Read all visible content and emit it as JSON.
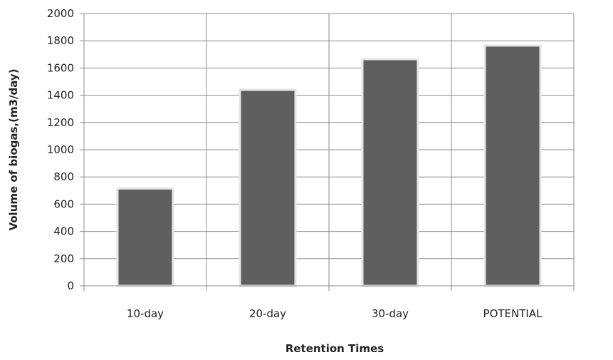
{
  "chart_data": {
    "type": "bar",
    "title": "",
    "xlabel": "Retention Times",
    "ylabel": "Volume of biogas,(m3/day)",
    "categories": [
      "10-day",
      "20-day",
      "30-day",
      "POTENTIAL"
    ],
    "values": [
      715,
      1440,
      1665,
      1765
    ],
    "ylim": [
      0,
      2000
    ],
    "y_ticks": [
      0,
      200,
      400,
      600,
      800,
      1000,
      1200,
      1400,
      1600,
      1800,
      2000
    ],
    "grid": true,
    "legend": "none",
    "colors": {
      "bar": "#5f5f5f",
      "bar_edge": "#e6e6e6",
      "grid": "#8c8c8c",
      "axis": "#8c8c8c"
    }
  }
}
